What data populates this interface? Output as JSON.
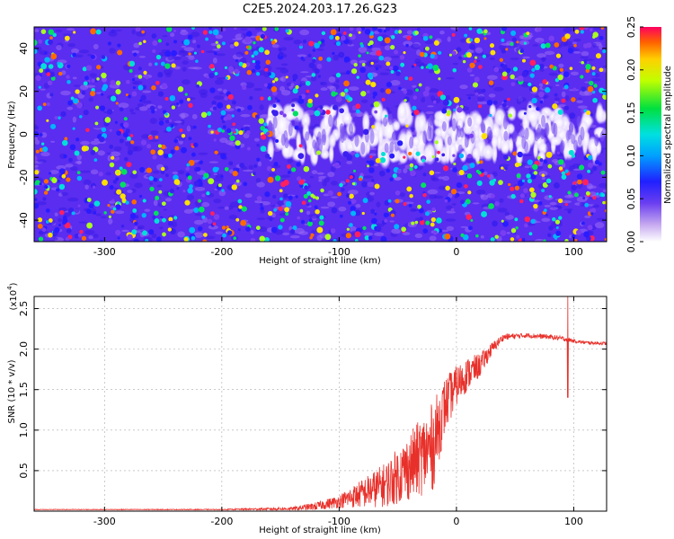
{
  "title": "C2E5.2024.203.17.26.G23",
  "chart_data": [
    {
      "type": "heatmap",
      "xlabel": "Height of straight line (km)",
      "ylabel": "Frequency (Hz)",
      "xlim": [
        -360,
        128
      ],
      "ylim": [
        -50,
        50
      ],
      "xticks": [
        -300,
        -200,
        -100,
        0,
        100
      ],
      "yticks": [
        -40,
        -20,
        0,
        20,
        40
      ],
      "colorbar": {
        "label": "Normalized spectral amplitude",
        "range": [
          0,
          0.25
        ],
        "ticks": [
          "0.00",
          "0.05",
          "0.10",
          "0.15",
          "0.20",
          "0.25"
        ]
      },
      "signal_band": {
        "x_start": -160,
        "x_end": 128,
        "center_freq": 0,
        "half_width_hz": 10
      }
    },
    {
      "type": "line",
      "xlabel": "Height of straight line (km)",
      "ylabel": "SNR (10 * v/v)",
      "y_multiplier": "(x10",
      "y_multiplier_exp": "4",
      "y_multiplier_close": ")",
      "xlim": [
        -360,
        128
      ],
      "ylim": [
        0,
        2.65
      ],
      "xticks": [
        -300,
        -200,
        -100,
        0,
        100
      ],
      "yticks": [
        "0.5",
        "1.0",
        "1.5",
        "2.0",
        "2.5"
      ],
      "series": [
        {
          "color": "#e8302a",
          "x": [
            -360,
            -200,
            -140,
            -120,
            -100,
            -80,
            -60,
            -40,
            -20,
            -10,
            0,
            10,
            20,
            30,
            40,
            60,
            80,
            95,
            100,
            110,
            128
          ],
          "y": [
            0.02,
            0.02,
            0.03,
            0.06,
            0.12,
            0.22,
            0.33,
            0.55,
            0.8,
            1.3,
            1.55,
            1.7,
            1.8,
            2.0,
            2.15,
            2.17,
            2.15,
            2.12,
            2.1,
            2.08,
            2.07
          ],
          "noise": [
            0.003,
            0.005,
            0.02,
            0.05,
            0.08,
            0.18,
            0.28,
            0.42,
            0.55,
            0.35,
            0.25,
            0.2,
            0.15,
            0.08,
            0.04,
            0.03,
            0.03,
            0.03,
            0.02,
            0.02,
            0.02
          ]
        }
      ]
    }
  ]
}
